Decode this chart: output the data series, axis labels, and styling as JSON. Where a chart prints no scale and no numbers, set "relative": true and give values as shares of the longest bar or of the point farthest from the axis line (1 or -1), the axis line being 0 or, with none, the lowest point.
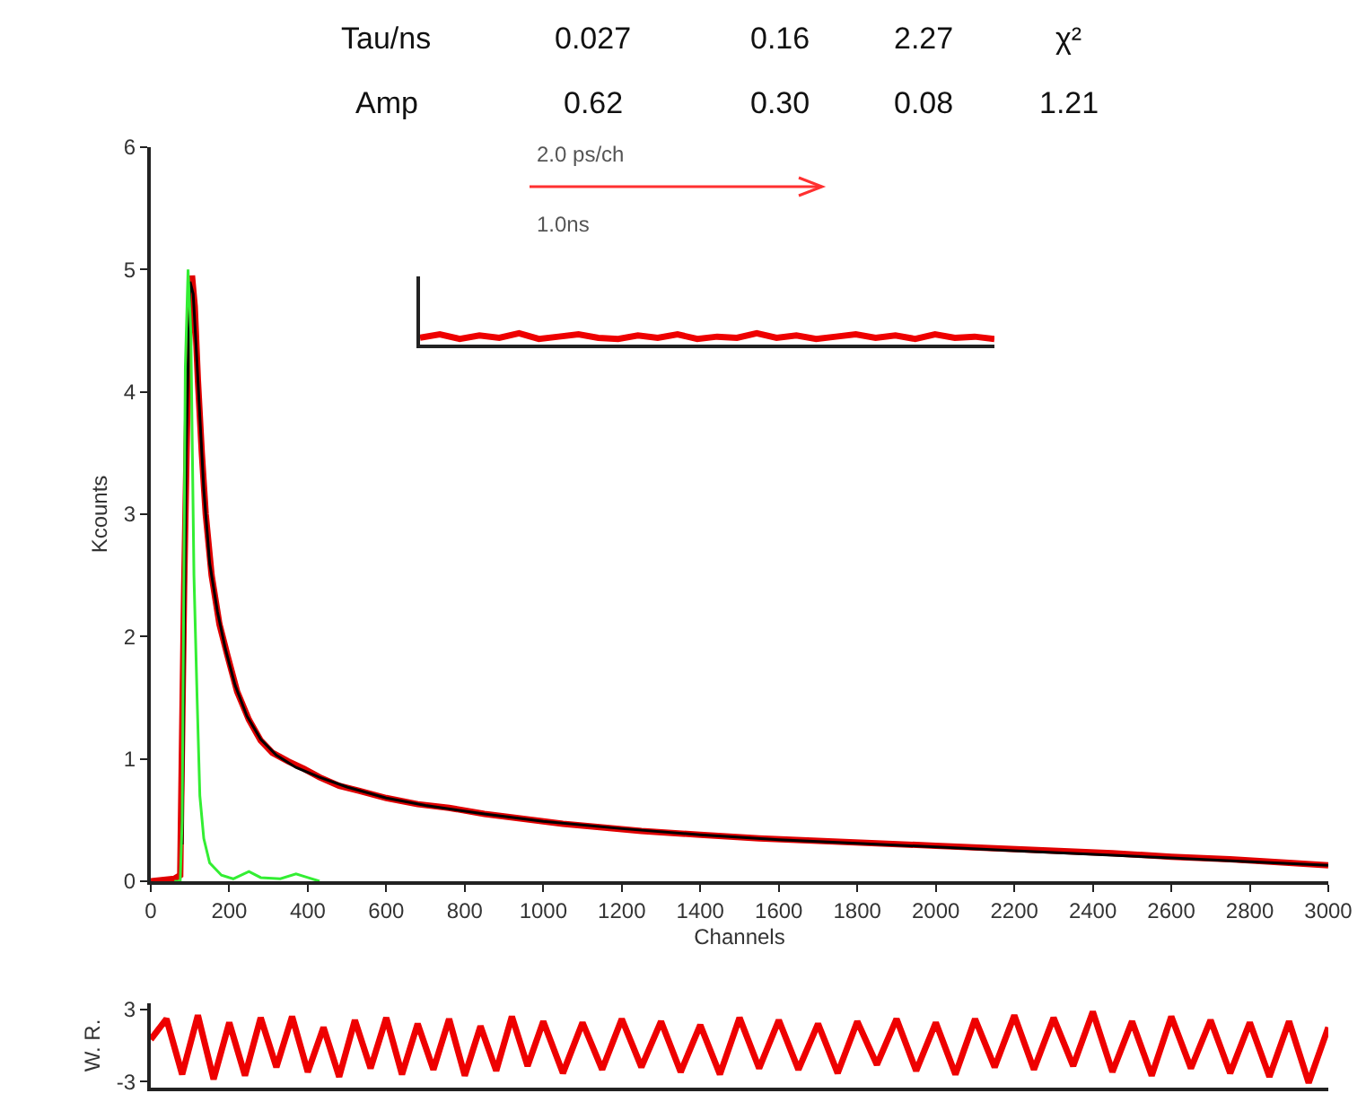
{
  "chart_data": [
    {
      "type": "line",
      "xlabel": "Channels",
      "ylabel": "Kcounts",
      "xlim": [
        0,
        3000
      ],
      "ylim": [
        0,
        6
      ],
      "xticks": [
        0,
        200,
        400,
        600,
        800,
        1000,
        1200,
        1400,
        1600,
        1800,
        2000,
        2200,
        2400,
        2600,
        2800,
        3000
      ],
      "yticks": [
        0,
        1,
        2,
        3,
        4,
        5,
        6
      ],
      "annotations": [
        "Tau/ns",
        "0.027",
        "0.16",
        "2.27",
        "χ²",
        "Amp",
        "0.62",
        "0.30",
        "0.08",
        "1.21",
        "2.0 ps/ch",
        "1.0ns"
      ],
      "series": [
        {
          "color": "#e00000",
          "x": [
            0,
            60,
            75,
            85,
            95,
            105,
            112,
            120,
            130,
            140,
            155,
            175,
            195,
            220,
            250,
            280,
            310,
            350,
            390,
            430,
            480,
            530,
            600,
            680,
            760,
            850,
            950,
            1050,
            1150,
            1250,
            1400,
            1550,
            1700,
            1850,
            2000,
            2150,
            2300,
            2450,
            2600,
            2750,
            2900,
            3000
          ],
          "values": [
            0,
            0.02,
            0.05,
            2.4,
            4.2,
            4.95,
            4.7,
            4.1,
            3.5,
            3.0,
            2.5,
            2.1,
            1.85,
            1.55,
            1.32,
            1.15,
            1.05,
            0.98,
            0.92,
            0.85,
            0.78,
            0.74,
            0.68,
            0.63,
            0.6,
            0.55,
            0.51,
            0.47,
            0.44,
            0.41,
            0.38,
            0.35,
            0.33,
            0.31,
            0.29,
            0.27,
            0.25,
            0.23,
            0.2,
            0.18,
            0.15,
            0.13
          ]
        },
        {
          "color": "#000000",
          "x": [
            80,
            90,
            100,
            108,
            115,
            125,
            135,
            150,
            170,
            190,
            215,
            245,
            280,
            320,
            370,
            430,
            500,
            600,
            700,
            850,
            1000,
            1200,
            1400,
            1600,
            1800,
            2000,
            2200,
            2400,
            2600,
            2800,
            3000
          ],
          "values": [
            0.3,
            3.5,
            4.9,
            4.8,
            4.4,
            3.8,
            3.2,
            2.6,
            2.2,
            1.9,
            1.6,
            1.35,
            1.16,
            1.03,
            0.93,
            0.85,
            0.77,
            0.68,
            0.62,
            0.55,
            0.49,
            0.43,
            0.38,
            0.34,
            0.31,
            0.28,
            0.25,
            0.22,
            0.19,
            0.16,
            0.13
          ]
        },
        {
          "color": "#33ee33",
          "x": [
            60,
            75,
            80,
            88,
            95,
            102,
            110,
            118,
            125,
            135,
            150,
            180,
            210,
            250,
            280,
            330,
            370,
            400,
            430
          ],
          "values": [
            0,
            0,
            0.5,
            4.2,
            5.0,
            4.5,
            2.5,
            1.5,
            0.7,
            0.35,
            0.15,
            0.05,
            0.02,
            0.08,
            0.03,
            0.02,
            0.06,
            0.03,
            0
          ]
        }
      ]
    },
    {
      "type": "line",
      "ylabel": "W. R.",
      "xlim": [
        0,
        3000
      ],
      "ylim": [
        -3.5,
        3.5
      ],
      "yticks": [
        -3,
        3
      ],
      "tick_labels": "y",
      "series": [
        {
          "color": "#ee0000",
          "x": [
            0,
            40,
            80,
            120,
            160,
            200,
            240,
            280,
            320,
            360,
            400,
            440,
            480,
            520,
            560,
            600,
            640,
            680,
            720,
            760,
            800,
            840,
            880,
            920,
            960,
            1000,
            1050,
            1100,
            1150,
            1200,
            1250,
            1300,
            1350,
            1400,
            1450,
            1500,
            1550,
            1600,
            1650,
            1700,
            1750,
            1800,
            1850,
            1900,
            1950,
            2000,
            2050,
            2100,
            2150,
            2200,
            2250,
            2300,
            2350,
            2400,
            2450,
            2500,
            2550,
            2600,
            2650,
            2700,
            2750,
            2800,
            2850,
            2900,
            2950,
            3000
          ],
          "values": [
            0.5,
            2.2,
            -2.4,
            2.5,
            -2.8,
            1.9,
            -2.5,
            2.3,
            -1.8,
            2.4,
            -2.2,
            1.5,
            -2.6,
            2.1,
            -1.9,
            2.3,
            -2.4,
            1.8,
            -2.0,
            2.2,
            -2.5,
            1.6,
            -2.1,
            2.4,
            -1.7,
            2.0,
            -2.3,
            1.9,
            -2.0,
            2.2,
            -1.8,
            2.0,
            -2.2,
            1.7,
            -2.4,
            2.3,
            -1.9,
            2.1,
            -2.0,
            1.8,
            -2.3,
            2.0,
            -1.6,
            2.2,
            -2.1,
            1.9,
            -2.4,
            2.2,
            -1.8,
            2.5,
            -2.0,
            2.3,
            -1.7,
            2.8,
            -2.2,
            2.0,
            -2.5,
            2.4,
            -1.9,
            2.1,
            -2.3,
            1.9,
            -2.6,
            2.0,
            -3.1,
            1.5
          ]
        }
      ]
    },
    {
      "type": "line",
      "relative": true,
      "categories": [
        null,
        null,
        null,
        null,
        null,
        null,
        null,
        null,
        null,
        null,
        null,
        null,
        null,
        null,
        null,
        null,
        null,
        null,
        null,
        null,
        null,
        null,
        null,
        null,
        null,
        null,
        null,
        null,
        null,
        null
      ],
      "series": [
        {
          "color": "#ee0000",
          "values": [
            0.6,
            0.9,
            0.5,
            0.8,
            0.6,
            1,
            0.5,
            0.7,
            0.9,
            0.6,
            0.5,
            0.8,
            0.6,
            0.9,
            0.5,
            0.7,
            0.6,
            1,
            0.6,
            0.8,
            0.5,
            0.7,
            0.9,
            0.6,
            0.8,
            0.5,
            0.9,
            0.6,
            0.7,
            0.5
          ]
        }
      ]
    }
  ]
}
